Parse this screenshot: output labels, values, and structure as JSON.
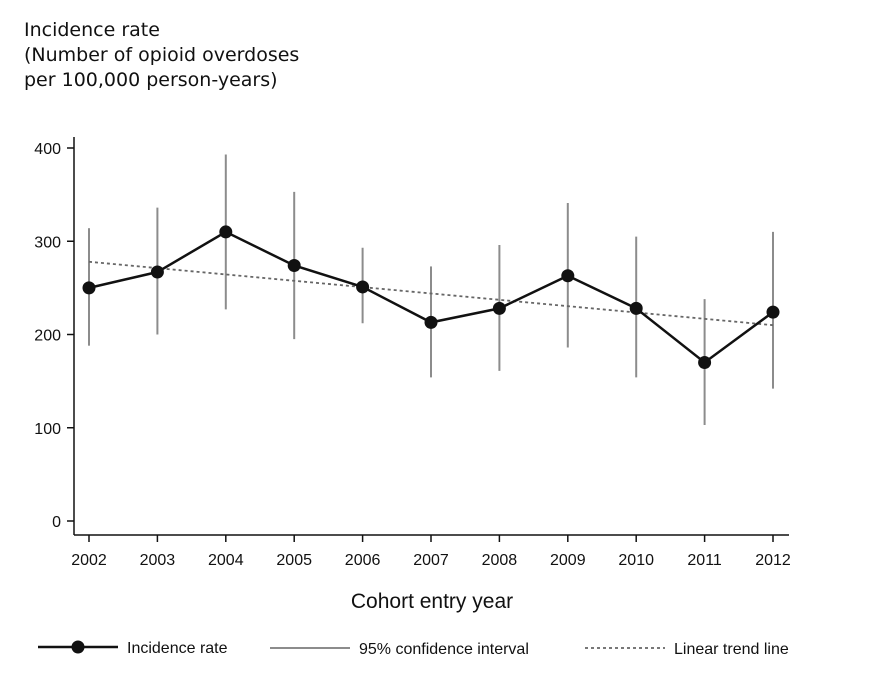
{
  "chart_data": {
    "type": "line",
    "ylabel_lines": [
      "Incidence rate",
      "(Number of opioid overdoses",
      "per 100,000 person-years)"
    ],
    "xlabel": "Cohort entry year",
    "categories": [
      "2002",
      "2003",
      "2004",
      "2005",
      "2006",
      "2007",
      "2008",
      "2009",
      "2010",
      "2011",
      "2012"
    ],
    "ylim": [
      0,
      400
    ],
    "yticks": [
      "0",
      "100",
      "200",
      "300",
      "400"
    ],
    "grid": false,
    "series": [
      {
        "name": "Incidence rate",
        "values": [
          250,
          267,
          310,
          274,
          251,
          213,
          228,
          263,
          228,
          170,
          224
        ],
        "ci_lower": [
          188,
          200,
          227,
          195,
          212,
          154,
          161,
          186,
          154,
          103,
          142
        ],
        "ci_upper": [
          314,
          336,
          393,
          353,
          293,
          273,
          296,
          341,
          305,
          238,
          310
        ],
        "color": "#111111"
      }
    ],
    "trend": {
      "name": "Linear trend line",
      "start": 278,
      "end": 210,
      "color": "#666666"
    },
    "legend": {
      "placement": "bottom",
      "entries": [
        "Incidence rate",
        "95% confidence interval",
        "Linear trend line"
      ]
    },
    "ci_color": "#8c8c8c"
  }
}
